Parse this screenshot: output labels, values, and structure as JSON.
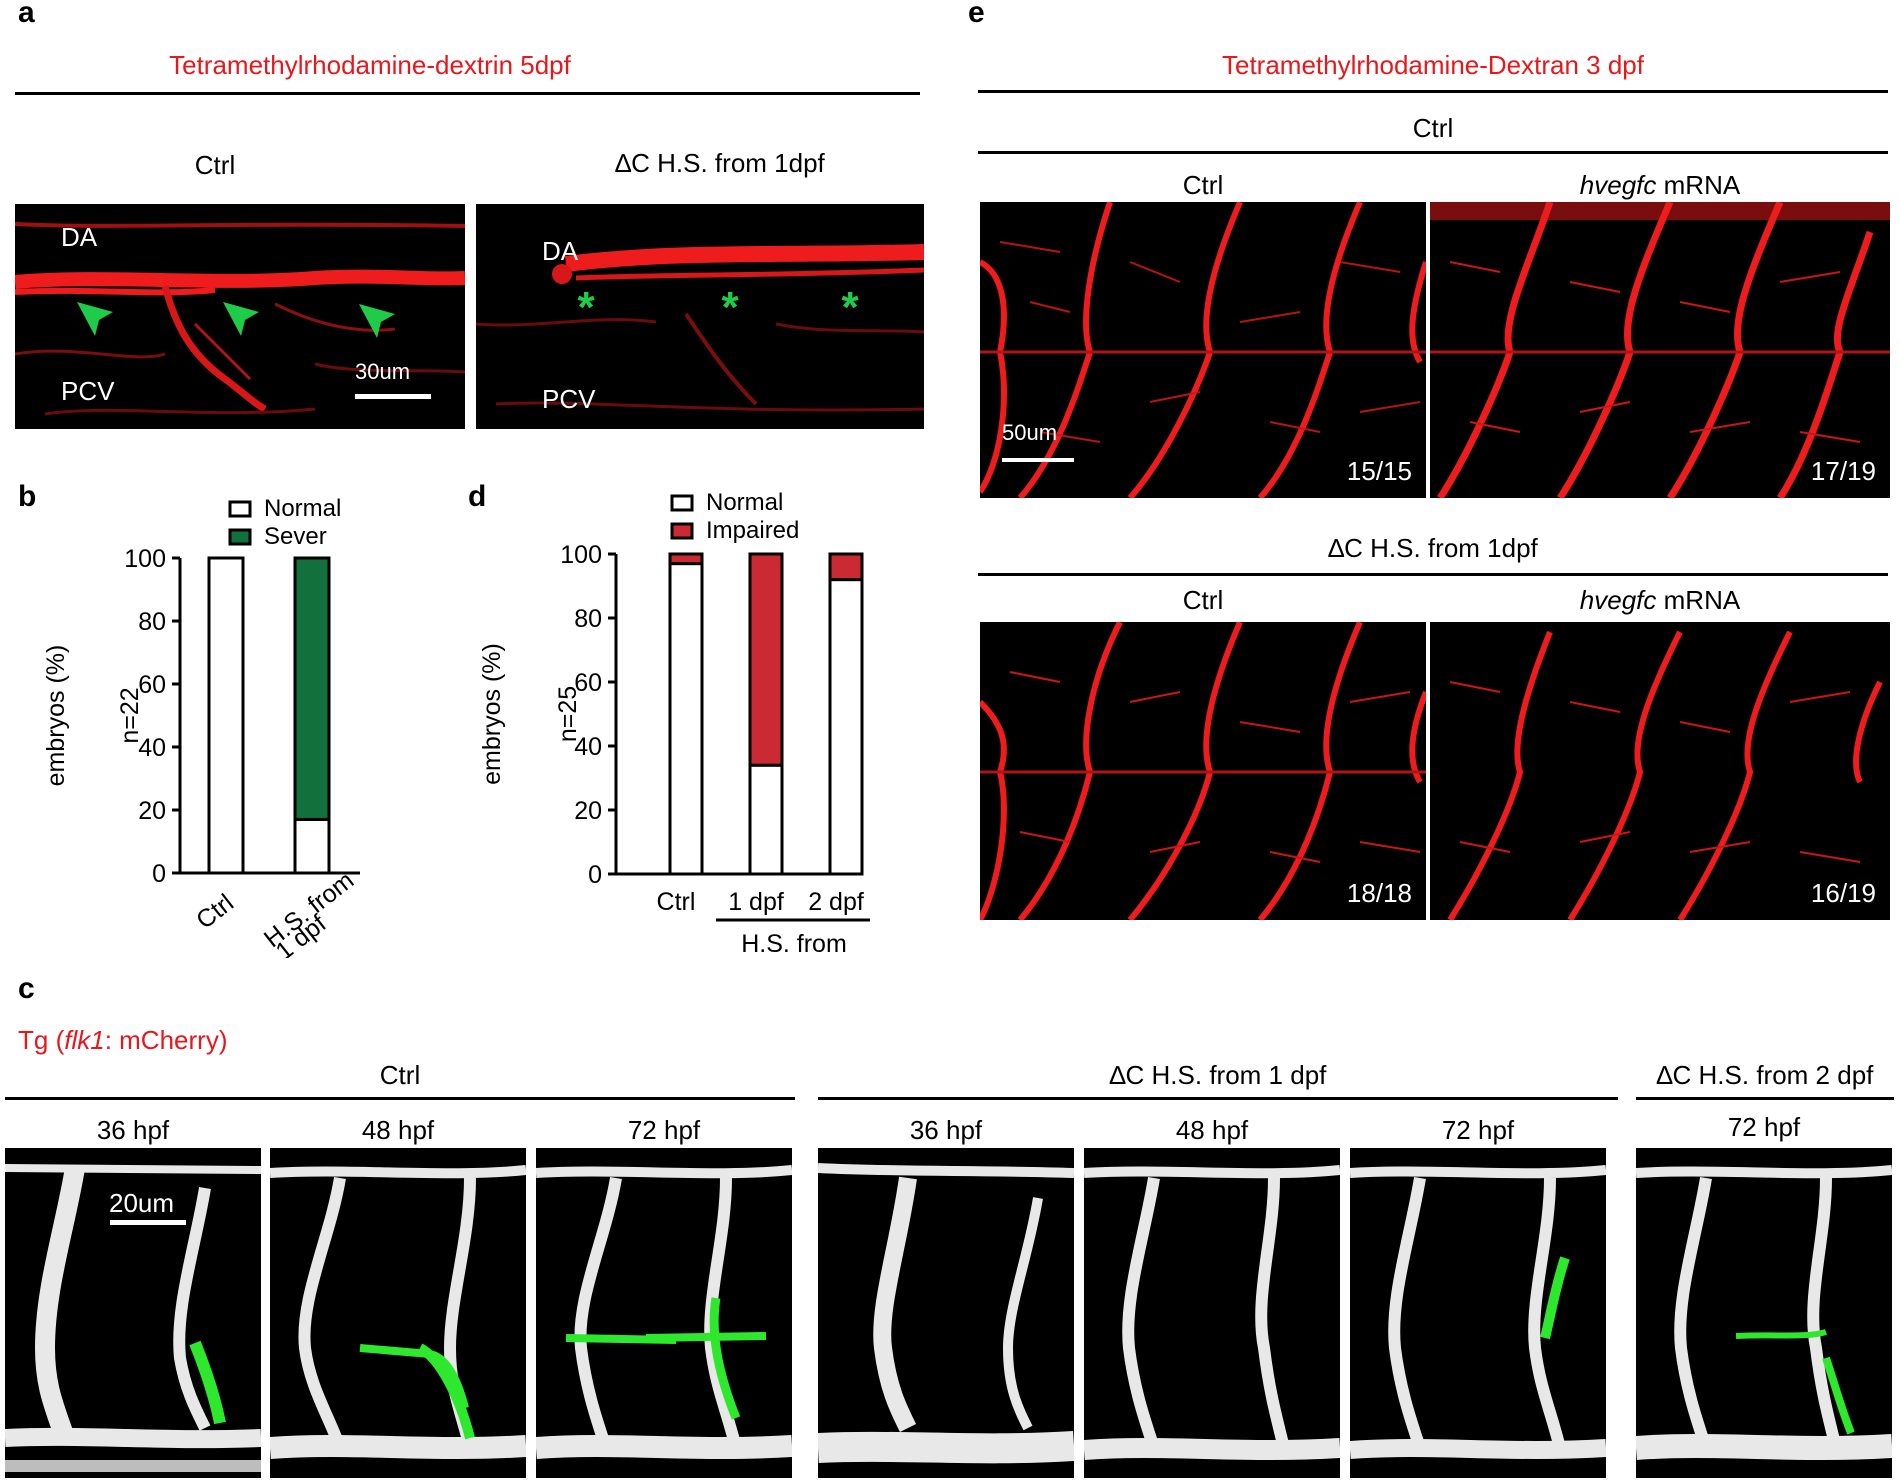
{
  "panel_a": {
    "letter": "a",
    "title": "Tetramethylrhodamine-dextrin 5dpf",
    "col_left": "Ctrl",
    "col_right": "∆C H.S. from 1dpf",
    "da": "DA",
    "pcv": "PCV",
    "scale": "30um"
  },
  "panel_b": {
    "letter": "b",
    "legend": [
      "Normal",
      "Sever"
    ],
    "ylabel": "embryos (%)",
    "n": "n=22",
    "yticks": [
      "0",
      "20",
      "40",
      "60",
      "80",
      "100"
    ],
    "xtick1": "Ctrl",
    "xtick2_lines": [
      "H.S. from",
      "1 dpf"
    ]
  },
  "panel_d": {
    "letter": "d",
    "legend": [
      "Normal",
      "Impaired"
    ],
    "ylabel": "embryos (%)",
    "n": "n=25",
    "yticks": [
      "0",
      "20",
      "40",
      "60",
      "80",
      "100"
    ],
    "xticks": [
      "Ctrl",
      "1 dpf",
      "2 dpf"
    ],
    "group_label": "H.S. from"
  },
  "panel_e": {
    "letter": "e",
    "title": "Tetramethylrhodamine-Dextran 3 dpf",
    "group_top": "Ctrl",
    "group_bottom": "∆C H.S. from 1dpf",
    "col_ctrl": "Ctrl",
    "col_mrna_italic": "hvegfc",
    "col_mrna_rest": " mRNA",
    "scale": "50um",
    "counts": [
      "15/15",
      "17/19",
      "18/18",
      "16/19"
    ]
  },
  "panel_c": {
    "letter": "c",
    "tg_prefix": "Tg (",
    "tg_italic": "flk1",
    "tg_suffix": ": mCherry)",
    "groups": [
      "Ctrl",
      "∆C H.S. from 1 dpf",
      "∆C H.S. from 2 dpf"
    ],
    "timepoints": [
      "36 hpf",
      "48 hpf",
      "72 hpf",
      "36 hpf",
      "48 hpf",
      "72 hpf",
      "72 hpf"
    ],
    "scale": "20um"
  },
  "chart_data": [
    {
      "type": "bar",
      "stacked": true,
      "categories": [
        "Ctrl",
        "H.S. from 1 dpf"
      ],
      "series": [
        {
          "name": "Normal",
          "values": [
            100,
            17
          ],
          "color": "#ffffff"
        },
        {
          "name": "Sever",
          "values": [
            0,
            83
          ],
          "color": "#11703c"
        }
      ],
      "ylabel": "embryos (%)",
      "ylim": [
        0,
        100
      ],
      "annotation": "n=22",
      "legend": "top"
    },
    {
      "type": "bar",
      "stacked": true,
      "categories": [
        "Ctrl",
        "1 dpf",
        "2 dpf"
      ],
      "series": [
        {
          "name": "Normal",
          "values": [
            97,
            34,
            92
          ],
          "color": "#ffffff"
        },
        {
          "name": "Impaired",
          "values": [
            3,
            66,
            8
          ],
          "color": "#cc2a33"
        }
      ],
      "ylabel": "embryos (%)",
      "ylim": [
        0,
        100
      ],
      "group_label": "H.S. from",
      "annotation": "n=25",
      "legend": "top"
    }
  ],
  "colors": {
    "title_red": "#e8171c",
    "vessel_red": "#ee1c1c",
    "arrow_green": "#1fcc4a",
    "sever_green": "#11703c",
    "impaired_red": "#cc2a33",
    "lymph_green": "#2ee82e"
  }
}
